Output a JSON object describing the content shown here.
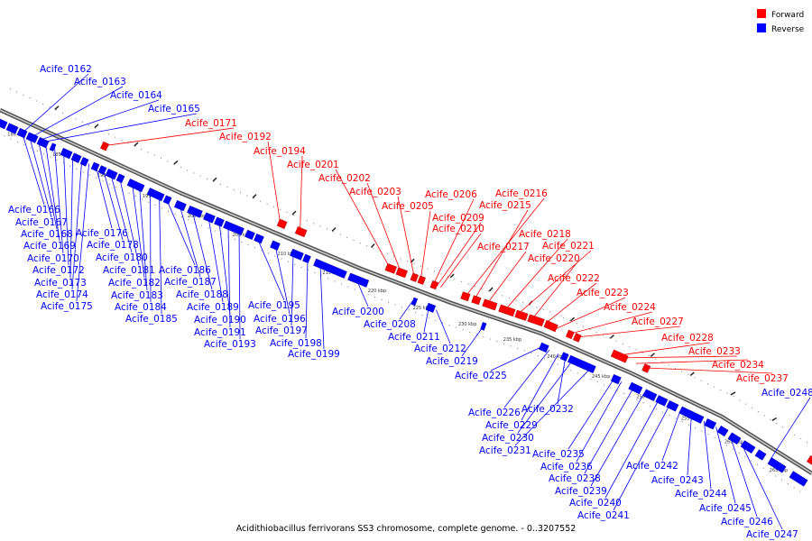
{
  "caption": "Acidithiobacillus ferrivorans SS3 chromosome, complete genome. - 0..3207552",
  "legend": {
    "forward_label": "Forward",
    "reverse_label": "Reverse",
    "forward_color": "#ff0000",
    "reverse_color": "#0000ff"
  },
  "ticks": [
    "180 kbp",
    "185 kbp",
    "190 kbp",
    "195 kbp",
    "200 kbp",
    "205 kbp",
    "210 kbp",
    "215 kbp",
    "220 kbp",
    "225 kbp",
    "230 kbp",
    "235 kbp",
    "240 kbp",
    "245 kbp",
    "250 kbp",
    "255 kbp",
    "260 kbp",
    "265 kbp"
  ],
  "genes": [
    {
      "label": "Acife_0162",
      "strand": "reverse"
    },
    {
      "label": "Acife_0163",
      "strand": "reverse"
    },
    {
      "label": "Acife_0164",
      "strand": "reverse"
    },
    {
      "label": "Acife_0165",
      "strand": "reverse"
    },
    {
      "label": "Acife_0171",
      "strand": "forward"
    },
    {
      "label": "Acife_0192",
      "strand": "forward"
    },
    {
      "label": "Acife_0194",
      "strand": "forward"
    },
    {
      "label": "Acife_0201",
      "strand": "forward"
    },
    {
      "label": "Acife_0202",
      "strand": "forward"
    },
    {
      "label": "Acife_0203",
      "strand": "forward"
    },
    {
      "label": "Acife_0205",
      "strand": "forward"
    },
    {
      "label": "Acife_0206",
      "strand": "forward"
    },
    {
      "label": "Acife_0209",
      "strand": "forward"
    },
    {
      "label": "Acife_0210",
      "strand": "forward"
    },
    {
      "label": "Acife_0216",
      "strand": "forward"
    },
    {
      "label": "Acife_0215",
      "strand": "forward"
    },
    {
      "label": "Acife_0217",
      "strand": "forward"
    },
    {
      "label": "Acife_0218",
      "strand": "forward"
    },
    {
      "label": "Acife_0221",
      "strand": "forward"
    },
    {
      "label": "Acife_0220",
      "strand": "forward"
    },
    {
      "label": "Acife_0222",
      "strand": "forward"
    },
    {
      "label": "Acife_0223",
      "strand": "forward"
    },
    {
      "label": "Acife_0224",
      "strand": "forward"
    },
    {
      "label": "Acife_0227",
      "strand": "forward"
    },
    {
      "label": "Acife_0228",
      "strand": "forward"
    },
    {
      "label": "Acife_0233",
      "strand": "forward"
    },
    {
      "label": "Acife_0234",
      "strand": "forward"
    },
    {
      "label": "Acife_0237",
      "strand": "forward"
    },
    {
      "label": "Acife_0248",
      "strand": "reverse"
    },
    {
      "label": "Acife_0166",
      "strand": "reverse"
    },
    {
      "label": "Acife_0167",
      "strand": "reverse"
    },
    {
      "label": "Acife_0168",
      "strand": "reverse"
    },
    {
      "label": "Acife_0169",
      "strand": "reverse"
    },
    {
      "label": "Acife_0170",
      "strand": "reverse"
    },
    {
      "label": "Acife_0172",
      "strand": "reverse"
    },
    {
      "label": "Acife_0173",
      "strand": "reverse"
    },
    {
      "label": "Acife_0174",
      "strand": "reverse"
    },
    {
      "label": "Acife_0175",
      "strand": "reverse"
    },
    {
      "label": "Acife_0176",
      "strand": "reverse"
    },
    {
      "label": "Acife_0178",
      "strand": "reverse"
    },
    {
      "label": "Acife_0180",
      "strand": "reverse"
    },
    {
      "label": "Acife_0181",
      "strand": "reverse"
    },
    {
      "label": "Acife_0182",
      "strand": "reverse"
    },
    {
      "label": "Acife_0183",
      "strand": "reverse"
    },
    {
      "label": "Acife_0184",
      "strand": "reverse"
    },
    {
      "label": "Acife_0185",
      "strand": "reverse"
    },
    {
      "label": "Acife_0186",
      "strand": "reverse"
    },
    {
      "label": "Acife_0187",
      "strand": "reverse"
    },
    {
      "label": "Acife_0188",
      "strand": "reverse"
    },
    {
      "label": "Acife_0189",
      "strand": "reverse"
    },
    {
      "label": "Acife_0190",
      "strand": "reverse"
    },
    {
      "label": "Acife_0191",
      "strand": "reverse"
    },
    {
      "label": "Acife_0193",
      "strand": "reverse"
    },
    {
      "label": "Acife_0195",
      "strand": "reverse"
    },
    {
      "label": "Acife_0196",
      "strand": "reverse"
    },
    {
      "label": "Acife_0197",
      "strand": "reverse"
    },
    {
      "label": "Acife_0198",
      "strand": "reverse"
    },
    {
      "label": "Acife_0199",
      "strand": "reverse"
    },
    {
      "label": "Acife_0200",
      "strand": "reverse"
    },
    {
      "label": "Acife_0208",
      "strand": "reverse"
    },
    {
      "label": "Acife_0211",
      "strand": "reverse"
    },
    {
      "label": "Acife_0212",
      "strand": "reverse"
    },
    {
      "label": "Acife_0219",
      "strand": "reverse"
    },
    {
      "label": "Acife_0225",
      "strand": "reverse"
    },
    {
      "label": "Acife_0226",
      "strand": "reverse"
    },
    {
      "label": "Acife_0229",
      "strand": "reverse"
    },
    {
      "label": "Acife_0232",
      "strand": "reverse"
    },
    {
      "label": "Acife_0230",
      "strand": "reverse"
    },
    {
      "label": "Acife_0231",
      "strand": "reverse"
    },
    {
      "label": "Acife_0235",
      "strand": "reverse"
    },
    {
      "label": "Acife_0236",
      "strand": "reverse"
    },
    {
      "label": "Acife_0238",
      "strand": "reverse"
    },
    {
      "label": "Acife_0239",
      "strand": "reverse"
    },
    {
      "label": "Acife_0240",
      "strand": "reverse"
    },
    {
      "label": "Acife_0241",
      "strand": "reverse"
    },
    {
      "label": "Acife_0242",
      "strand": "reverse"
    },
    {
      "label": "Acife_0243",
      "strand": "reverse"
    },
    {
      "label": "Acife_0244",
      "strand": "reverse"
    },
    {
      "label": "Acife_0245",
      "strand": "reverse"
    },
    {
      "label": "Acife_0246",
      "strand": "reverse"
    },
    {
      "label": "Acife_0247",
      "strand": "reverse"
    }
  ]
}
